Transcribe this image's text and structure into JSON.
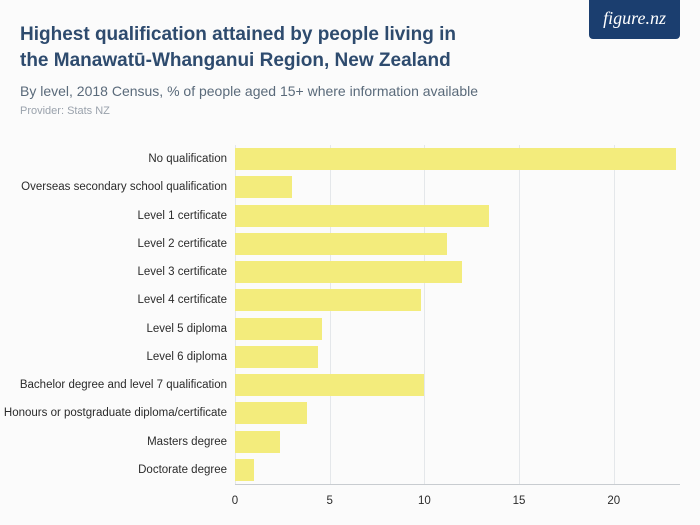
{
  "logo_text": "figure.nz",
  "title_line1": "Highest qualification attained by people living in",
  "title_line2": "the Manawatū-Whanganui Region, New Zealand",
  "subtitle": "By level, 2018 Census, % of people aged 15+ where information available",
  "provider": "Provider: Stats NZ",
  "chart": {
    "type": "bar-horizontal",
    "bar_color": "#f3ec7c",
    "background_color": "#fbfbfb",
    "grid_color": "#e4e7ea",
    "axis_color": "#c8ccd0",
    "label_fontsize": 11.5,
    "label_color": "#2b2b2b",
    "xlim": [
      0,
      23.5
    ],
    "xticks": [
      0,
      5,
      10,
      15,
      20
    ],
    "categories": [
      "No qualification",
      "Overseas secondary school qualification",
      "Level 1 certificate",
      "Level 2 certificate",
      "Level 3 certificate",
      "Level 4 certificate",
      "Level 5 diploma",
      "Level 6 diploma",
      "Bachelor degree and level 7 qualification",
      "Honours or postgraduate diploma/certificate",
      "Masters degree",
      "Doctorate degree"
    ],
    "values": [
      23.3,
      3.0,
      13.4,
      11.2,
      12.0,
      9.8,
      4.6,
      4.4,
      10.0,
      3.8,
      2.4,
      1.0
    ]
  }
}
